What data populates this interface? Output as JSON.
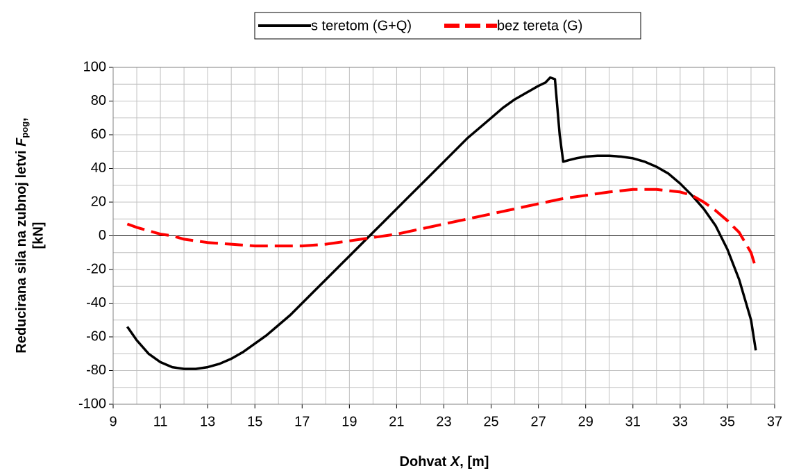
{
  "chart_data": {
    "type": "line",
    "xlabel": {
      "text": "Dohvat ",
      "var": "X",
      "rest": ", [m]"
    },
    "ylabel": {
      "line1": "Reducirana sila na zubnoj letvi ",
      "var": "F",
      "sub": "pog",
      "comma": ",",
      "line2": "[kN]"
    },
    "xlim": [
      9,
      37
    ],
    "ylim": [
      -100,
      100
    ],
    "xticks": [
      9,
      11,
      13,
      15,
      17,
      19,
      21,
      23,
      25,
      27,
      29,
      31,
      33,
      35,
      37
    ],
    "xminorticks": [
      10,
      12,
      14,
      16,
      18,
      20,
      22,
      24,
      26,
      28,
      30,
      32,
      34,
      36
    ],
    "yticks": [
      -100,
      -80,
      -60,
      -40,
      -20,
      0,
      20,
      40,
      60,
      80,
      100
    ],
    "yminorticks": [
      -90,
      -70,
      -50,
      -30,
      -10,
      10,
      30,
      50,
      70,
      90
    ],
    "grid": true,
    "legend": "top",
    "series": [
      {
        "name": "s teretom (G+Q)",
        "color": "#000000",
        "dash": false,
        "x": [
          9.6,
          10,
          10.5,
          11,
          11.5,
          12,
          12.5,
          13,
          13.5,
          14,
          14.5,
          15,
          15.5,
          16,
          16.5,
          17,
          17.5,
          18,
          18.5,
          19,
          19.5,
          20,
          20.5,
          21,
          21.5,
          22,
          22.5,
          23,
          23.5,
          24,
          24.5,
          25,
          25.5,
          26,
          26.5,
          27,
          27.3,
          27.5,
          27.7,
          27.9,
          28.05,
          28.3,
          28.6,
          29,
          29.5,
          30,
          30.5,
          31,
          31.5,
          32,
          32.5,
          33,
          33.5,
          34,
          34.5,
          35,
          35.5,
          36,
          36.2
        ],
        "values": [
          -54,
          -62,
          -70,
          -75,
          -78,
          -79,
          -79,
          -78,
          -76,
          -73,
          -69,
          -64,
          -59,
          -53,
          -47,
          -40,
          -33,
          -26,
          -19,
          -12,
          -5,
          2,
          9,
          16,
          23,
          30,
          37,
          44,
          51,
          58,
          64,
          70,
          76,
          81,
          85,
          89,
          91,
          94,
          93,
          60,
          44,
          45,
          46,
          47,
          47.5,
          47.5,
          47,
          46,
          44,
          41,
          37,
          31,
          24,
          16,
          6,
          -8,
          -26,
          -50,
          -68
        ]
      },
      {
        "name": "bez tereta (G)",
        "color": "#ff0000",
        "dash": true,
        "x": [
          9.6,
          10,
          10.5,
          11,
          11.5,
          12,
          13,
          14,
          15,
          16,
          17,
          18,
          19,
          20,
          21,
          22,
          23,
          24,
          25,
          26,
          27,
          28,
          29,
          30,
          31,
          32,
          33,
          33.5,
          34,
          34.5,
          35,
          35.5,
          36,
          36.2
        ],
        "values": [
          7,
          5,
          3,
          1,
          0,
          -2,
          -4,
          -5,
          -6,
          -6,
          -6,
          -5,
          -3,
          -1,
          1,
          4,
          7,
          10,
          13,
          16,
          19,
          22,
          24,
          26,
          27.5,
          27.5,
          26,
          24,
          20,
          15,
          9,
          2,
          -10,
          -19
        ]
      }
    ]
  }
}
